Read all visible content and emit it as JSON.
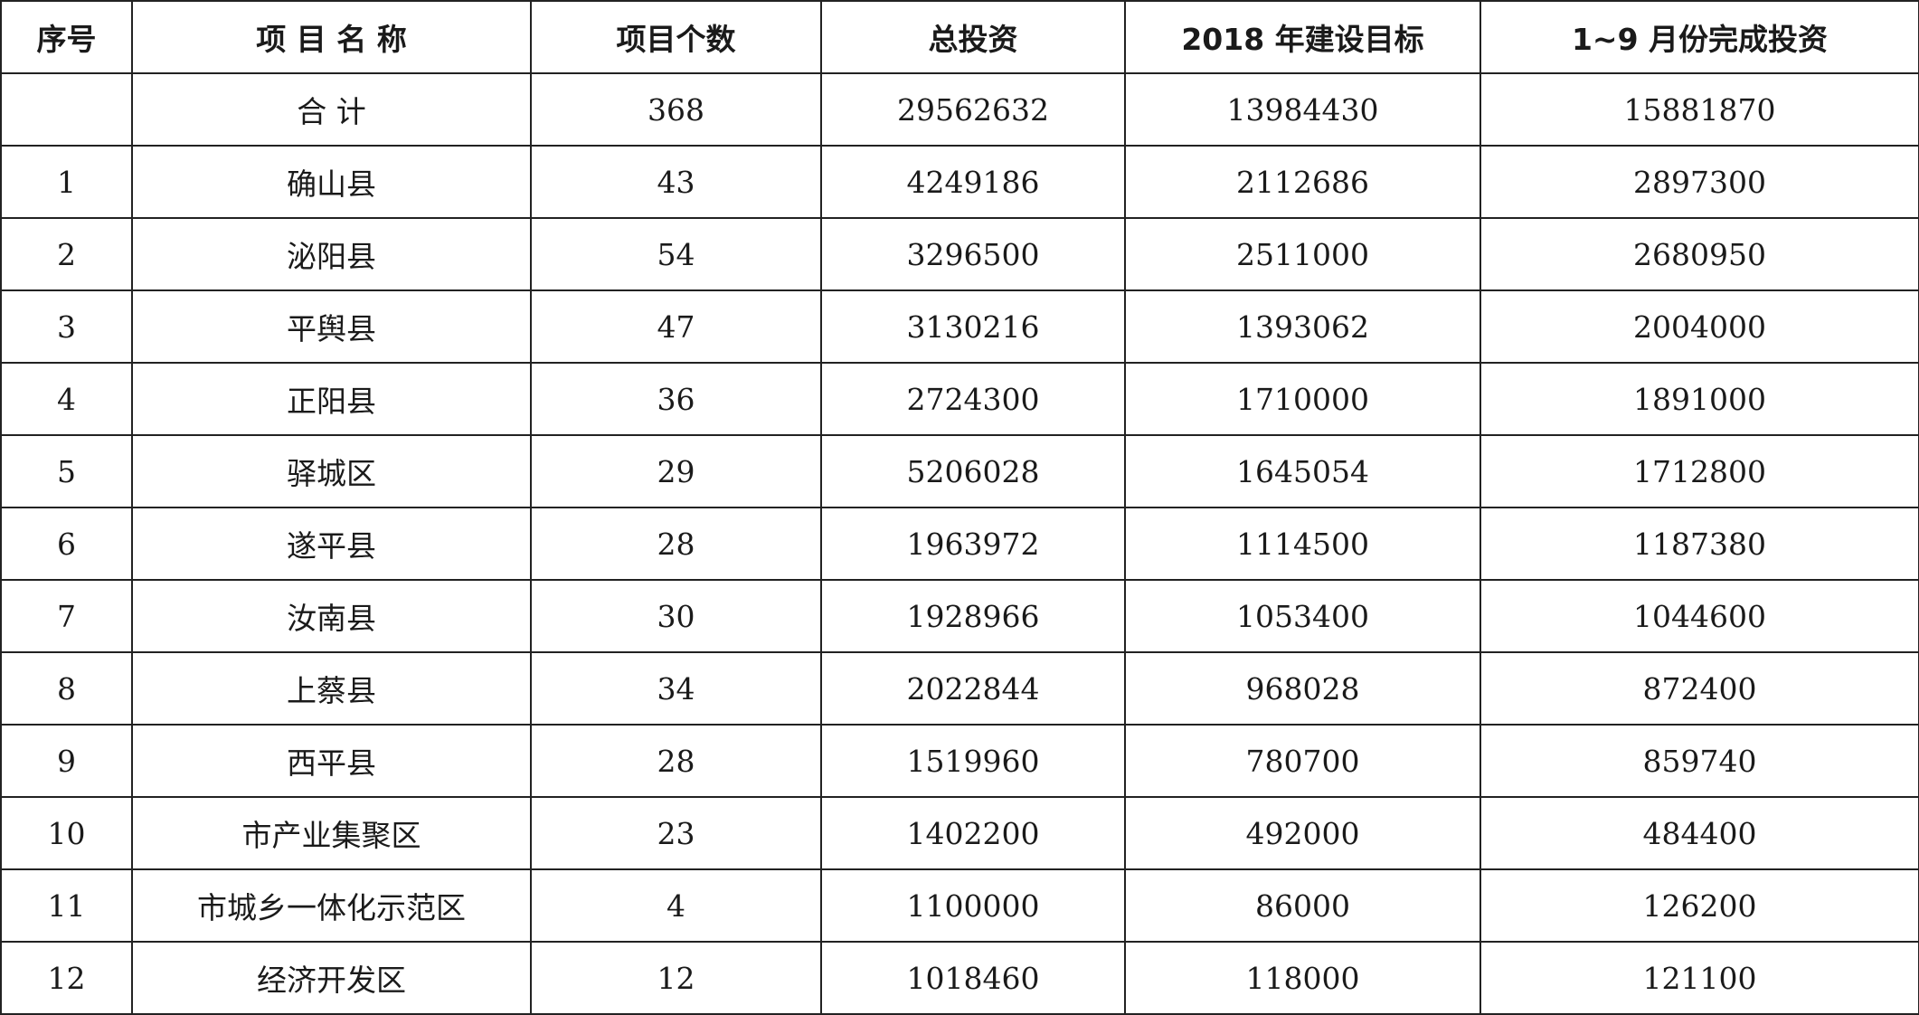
{
  "table": {
    "headers": {
      "index": "序号",
      "name": "项 目 名 称",
      "count": "项目个数",
      "total_investment": "总投资",
      "target_2018": "2018 年建设目标",
      "completed_jan_sep": "1~9 月份完成投资"
    },
    "total_row": {
      "index": "",
      "name": "合  计",
      "count": "368",
      "total_investment": "29562632",
      "target_2018": "13984430",
      "completed_jan_sep": "15881870"
    },
    "rows": [
      {
        "index": "1",
        "name": "确山县",
        "count": "43",
        "total_investment": "4249186",
        "target_2018": "2112686",
        "completed_jan_sep": "2897300"
      },
      {
        "index": "2",
        "name": "泌阳县",
        "count": "54",
        "total_investment": "3296500",
        "target_2018": "2511000",
        "completed_jan_sep": "2680950"
      },
      {
        "index": "3",
        "name": "平舆县",
        "count": "47",
        "total_investment": "3130216",
        "target_2018": "1393062",
        "completed_jan_sep": "2004000"
      },
      {
        "index": "4",
        "name": "正阳县",
        "count": "36",
        "total_investment": "2724300",
        "target_2018": "1710000",
        "completed_jan_sep": "1891000"
      },
      {
        "index": "5",
        "name": "驿城区",
        "count": "29",
        "total_investment": "5206028",
        "target_2018": "1645054",
        "completed_jan_sep": "1712800"
      },
      {
        "index": "6",
        "name": "遂平县",
        "count": "28",
        "total_investment": "1963972",
        "target_2018": "1114500",
        "completed_jan_sep": "1187380"
      },
      {
        "index": "7",
        "name": "汝南县",
        "count": "30",
        "total_investment": "1928966",
        "target_2018": "1053400",
        "completed_jan_sep": "1044600"
      },
      {
        "index": "8",
        "name": "上蔡县",
        "count": "34",
        "total_investment": "2022844",
        "target_2018": "968028",
        "completed_jan_sep": "872400"
      },
      {
        "index": "9",
        "name": "西平县",
        "count": "28",
        "total_investment": "1519960",
        "target_2018": "780700",
        "completed_jan_sep": "859740"
      },
      {
        "index": "10",
        "name": "市产业集聚区",
        "count": "23",
        "total_investment": "1402200",
        "target_2018": "492000",
        "completed_jan_sep": "484400"
      },
      {
        "index": "11",
        "name": "市城乡一体化示范区",
        "count": "4",
        "total_investment": "1100000",
        "target_2018": "86000",
        "completed_jan_sep": "126200"
      },
      {
        "index": "12",
        "name": "经济开发区",
        "count": "12",
        "total_investment": "1018460",
        "target_2018": "118000",
        "completed_jan_sep": "121100"
      }
    ]
  }
}
